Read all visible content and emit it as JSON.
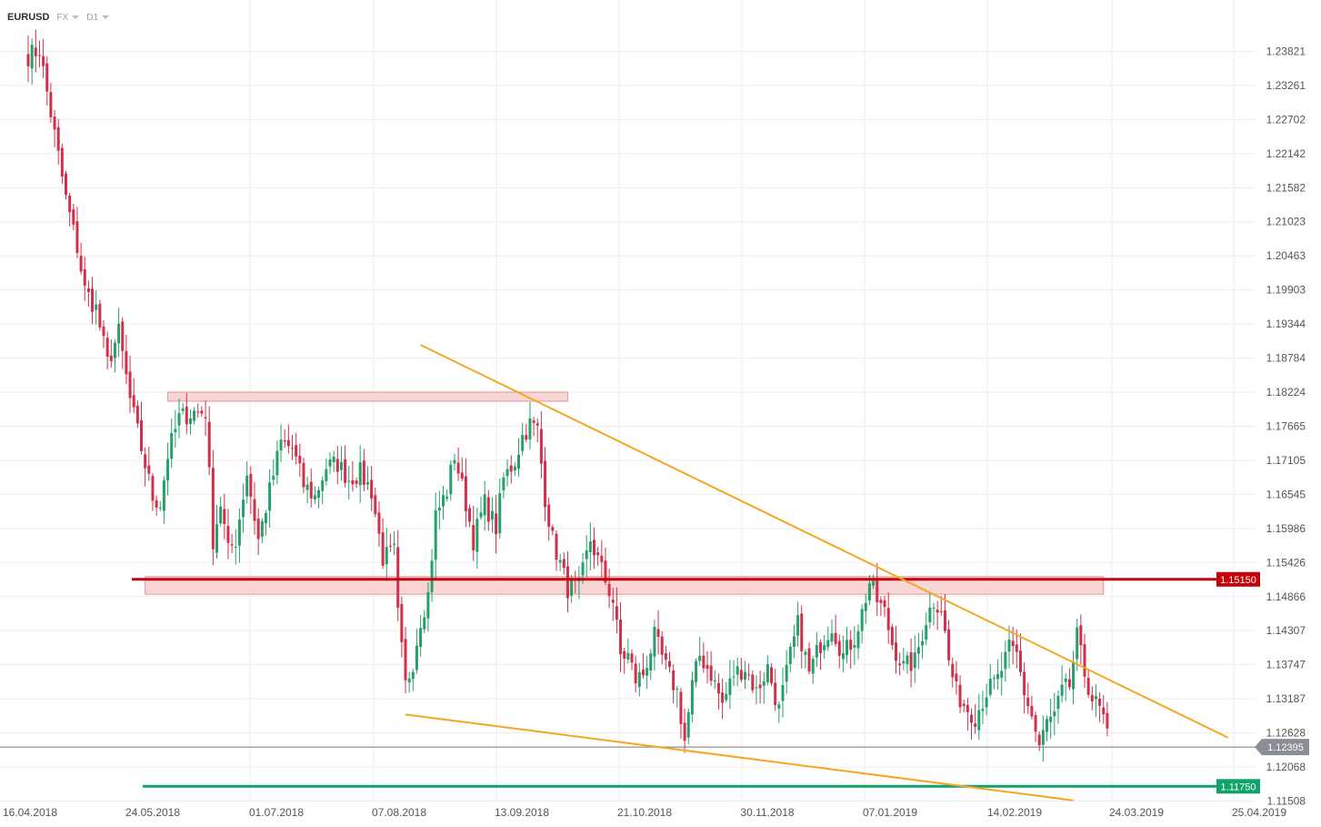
{
  "header": {
    "symbol": "EURUSD",
    "market": "FX",
    "timeframe": "D1"
  },
  "colors": {
    "bull": "#26a06b",
    "bear": "#d0304a",
    "trendline": "#f5a623",
    "resistance_zone_fill": "#f8d2d2",
    "resistance_zone_border": "#e38a8a",
    "resistance_line": "#c4000a",
    "support_line": "#10a36b",
    "grid": "#eeeeee",
    "current_price_line": "#777777",
    "current_price_badge": "#8a8f96"
  },
  "chart_data": {
    "type": "candlestick",
    "title": "",
    "xlabel": "",
    "ylabel": "",
    "ylim": [
      1.1135,
      1.242
    ],
    "y_ticks": [
      "1.23821",
      "1.23261",
      "1.22702",
      "1.22142",
      "1.21582",
      "1.21023",
      "1.20463",
      "1.19903",
      "1.19344",
      "1.18784",
      "1.18224",
      "1.17665",
      "1.17105",
      "1.16545",
      "1.15986",
      "1.15426",
      "1.14866",
      "1.14307",
      "1.13747",
      "1.13187",
      "1.12628",
      "1.12068",
      "1.11508"
    ],
    "x_ticks": [
      "16.04.2018",
      "24.05.2018",
      "01.07.2018",
      "07.08.2018",
      "13.09.2018",
      "21.10.2018",
      "30.11.2018",
      "07.01.2019",
      "14.02.2019",
      "24.03.2019",
      "25.04.2019"
    ],
    "grid": true,
    "current_price": "1.12395",
    "horizontal_levels": [
      {
        "label": "1.15150",
        "value": 1.1515,
        "style": "resistance"
      },
      {
        "label": "1.11750",
        "value": 1.1175,
        "style": "support"
      }
    ],
    "zones": [
      {
        "from_index": 37,
        "to_index": 143,
        "y_low": 1.1812,
        "y_high": 1.1818
      },
      {
        "from_index": 31,
        "to_index": 285,
        "y_low": 1.1495,
        "y_high": 1.1515
      }
    ],
    "trendlines": [
      {
        "from": {
          "index": 104,
          "value": 1.19
        },
        "to": {
          "index": 318,
          "value": 1.1255
        }
      },
      {
        "from": {
          "index": 100,
          "value": 1.1293
        },
        "to": {
          "index": 277,
          "value": 1.1152
        }
      }
    ],
    "series": [
      {
        "checkpoints": [
          [
            0,
            1.2375
          ],
          [
            3,
            1.2385
          ],
          [
            6,
            1.228
          ],
          [
            10,
            1.214
          ],
          [
            13,
            1.206
          ],
          [
            15,
            1.199
          ],
          [
            18,
            1.196
          ],
          [
            21,
            1.187
          ],
          [
            24,
            1.192
          ],
          [
            27,
            1.181
          ],
          [
            30,
            1.173
          ],
          [
            33,
            1.165
          ],
          [
            35,
            1.164
          ],
          [
            37,
            1.172
          ],
          [
            40,
            1.178
          ],
          [
            44,
            1.179
          ],
          [
            47,
            1.179
          ],
          [
            49,
            1.158
          ],
          [
            51,
            1.164
          ],
          [
            53,
            1.156
          ],
          [
            55,
            1.158
          ],
          [
            58,
            1.169
          ],
          [
            61,
            1.158
          ],
          [
            64,
            1.166
          ],
          [
            67,
            1.174
          ],
          [
            70,
            1.173
          ],
          [
            73,
            1.167
          ],
          [
            76,
            1.165
          ],
          [
            79,
            1.17
          ],
          [
            82,
            1.1705
          ],
          [
            85,
            1.168
          ],
          [
            88,
            1.169
          ],
          [
            91,
            1.166
          ],
          [
            94,
            1.155
          ],
          [
            97,
            1.156
          ],
          [
            98,
            1.1455
          ],
          [
            100,
            1.134
          ],
          [
            102,
            1.138
          ],
          [
            104,
            1.145
          ],
          [
            106,
            1.149
          ],
          [
            108,
            1.162
          ],
          [
            111,
            1.166
          ],
          [
            113,
            1.172
          ],
          [
            116,
            1.164
          ],
          [
            118,
            1.158
          ],
          [
            121,
            1.164
          ],
          [
            124,
            1.16
          ],
          [
            126,
            1.168
          ],
          [
            129,
            1.171
          ],
          [
            131,
            1.175
          ],
          [
            133,
            1.177
          ],
          [
            135,
            1.176
          ],
          [
            137,
            1.165
          ],
          [
            139,
            1.158
          ],
          [
            141,
            1.154
          ],
          [
            143,
            1.15
          ],
          [
            146,
            1.15
          ],
          [
            149,
            1.158
          ],
          [
            152,
            1.153
          ],
          [
            155,
            1.148
          ],
          [
            157,
            1.139
          ],
          [
            159,
            1.139
          ],
          [
            161,
            1.135
          ],
          [
            163,
            1.136
          ],
          [
            166,
            1.142
          ],
          [
            169,
            1.137
          ],
          [
            172,
            1.133
          ],
          [
            174,
            1.125
          ],
          [
            176,
            1.134
          ],
          [
            178,
            1.139
          ],
          [
            181,
            1.136
          ],
          [
            184,
            1.131
          ],
          [
            187,
            1.136
          ],
          [
            190,
            1.137
          ],
          [
            193,
            1.133
          ],
          [
            196,
            1.137
          ],
          [
            199,
            1.13
          ],
          [
            202,
            1.139
          ],
          [
            204,
            1.144
          ],
          [
            207,
            1.136
          ],
          [
            210,
            1.141
          ],
          [
            213,
            1.144
          ],
          [
            216,
            1.139
          ],
          [
            219,
            1.142
          ],
          [
            221,
            1.146
          ],
          [
            223,
            1.151
          ],
          [
            225,
            1.148
          ],
          [
            227,
            1.146
          ],
          [
            229,
            1.141
          ],
          [
            232,
            1.137
          ],
          [
            235,
            1.138
          ],
          [
            238,
            1.145
          ],
          [
            240,
            1.148
          ],
          [
            242,
            1.147
          ],
          [
            244,
            1.138
          ],
          [
            246,
            1.133
          ],
          [
            248,
            1.131
          ],
          [
            251,
            1.129
          ],
          [
            254,
            1.133
          ],
          [
            257,
            1.135
          ],
          [
            260,
            1.14
          ],
          [
            262,
            1.139
          ],
          [
            264,
            1.133
          ],
          [
            266,
            1.129
          ],
          [
            268,
            1.124
          ],
          [
            270,
            1.128
          ],
          [
            272,
            1.129
          ],
          [
            274,
            1.133
          ],
          [
            276,
            1.134
          ],
          [
            278,
            1.142
          ],
          [
            280,
            1.136
          ],
          [
            282,
            1.132
          ],
          [
            284,
            1.13
          ],
          [
            286,
            1.127
          ]
        ]
      }
    ]
  }
}
